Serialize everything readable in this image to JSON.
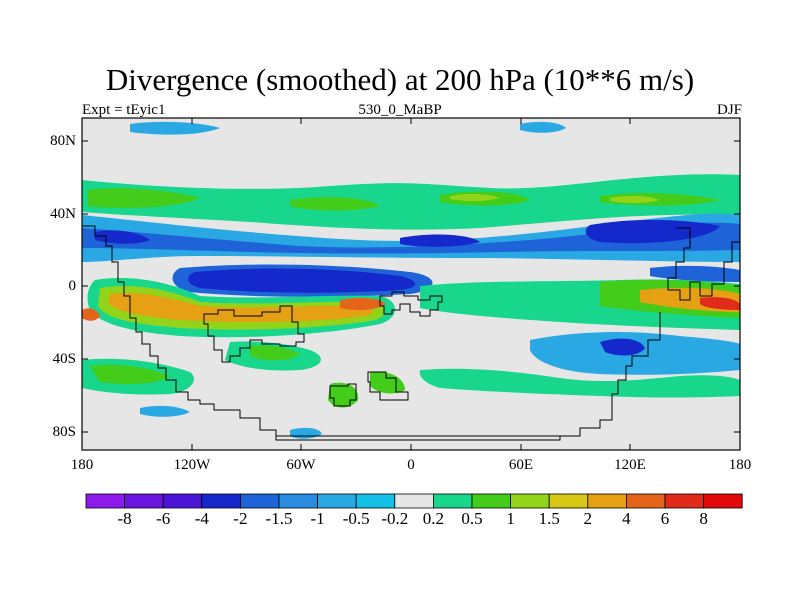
{
  "title": "Divergence (smoothed) at 200 hPa (10**6 m/s)",
  "subtitle_left": "Expt = tEyic1",
  "subtitle_center": "530_0_MaBP",
  "subtitle_right": "DJF",
  "y_ticks": [
    "80N",
    "40N",
    "0",
    "40S",
    "80S"
  ],
  "x_ticks": [
    "180",
    "120W",
    "60W",
    "0",
    "60E",
    "120E",
    "180"
  ],
  "colorbar": {
    "labels": [
      "-8",
      "-6",
      "-4",
      "-2",
      "-1.5",
      "-1",
      "-0.5",
      "-0.2",
      "0.2",
      "0.5",
      "1",
      "1.5",
      "2",
      "4",
      "6",
      "8"
    ],
    "colors": [
      "#8c1aeb",
      "#6a14e0",
      "#4a14d6",
      "#1428cc",
      "#1e64d8",
      "#2a8ce0",
      "#2aa8e4",
      "#14c0e6",
      "#e6e6e6",
      "#18d68c",
      "#44cc1a",
      "#92d41a",
      "#d6c814",
      "#e6a014",
      "#e4641a",
      "#e02a1a",
      "#e00a0a"
    ]
  },
  "colors": {
    "background": "#e6e6e6",
    "coast": "#000000"
  }
}
